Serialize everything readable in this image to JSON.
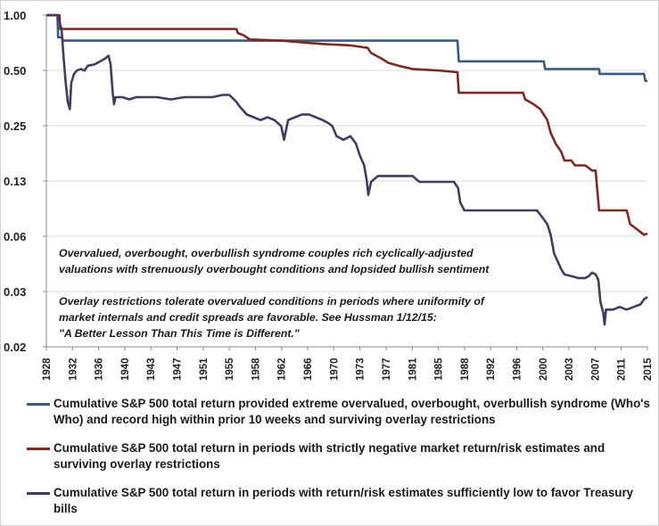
{
  "chart_data": {
    "type": "line",
    "yscale": "log",
    "ylim": [
      0.02,
      1.0
    ],
    "xlim": [
      1928,
      2015
    ],
    "y_ticks": [
      "1.00",
      "0.50",
      "0.25",
      "0.13",
      "0.06",
      "0.03",
      "0.02"
    ],
    "y_tick_values": [
      1.0,
      0.5,
      0.25,
      0.13,
      0.06,
      0.03,
      0.02
    ],
    "x_ticks": [
      "1928",
      "1932",
      "1936",
      "1940",
      "1943",
      "1947",
      "1951",
      "1955",
      "1958",
      "1962",
      "1966",
      "1970",
      "1973",
      "1977",
      "1981",
      "1985",
      "1988",
      "1992",
      "1996",
      "2000",
      "2003",
      "2007",
      "2011",
      "2015"
    ],
    "grid": "horizontal",
    "annotations": [
      "Overvalued, overbought, overbullish syndrome couples rich cyclically-adjusted",
      "valuations with strenuously overbought conditions and lopsided bullish sentiment",
      "Overlay restrictions tolerate overvalued conditions in periods where uniformity of",
      "market internals and credit spreads are favorable. See Hussman 1/12/15:",
      "\"A Better Lesson Than This Time is Different.\""
    ],
    "legend_placement": "bottom",
    "series": [
      {
        "name": "Cumulative S&P 500 total return provided extreme overvalued, overbought, overbullish syndrome (Who's Who) and record high within prior 10 weeks and surviving overlay restrictions",
        "color": "#3b5a7e",
        "points": [
          [
            1928,
            1.0
          ],
          [
            1929.6,
            1.0
          ],
          [
            1929.7,
            0.77
          ],
          [
            1930.3,
            0.77
          ],
          [
            1930.4,
            0.74
          ],
          [
            1987.5,
            0.74
          ],
          [
            1987.7,
            0.58
          ],
          [
            2000.0,
            0.58
          ],
          [
            2000.2,
            0.53
          ],
          [
            2008.0,
            0.53
          ],
          [
            2008.1,
            0.5
          ],
          [
            2014.5,
            0.5
          ],
          [
            2014.7,
            0.46
          ],
          [
            2015,
            0.46
          ]
        ]
      },
      {
        "name": "Cumulative S&P 500 total return in periods with strictly negative market return/risk estimates and surviving overlay restrictions",
        "color": "#7a2a22",
        "points": [
          [
            1928,
            1.0
          ],
          [
            1929.9,
            1.0
          ],
          [
            1930.0,
            0.85
          ],
          [
            1955.5,
            0.85
          ],
          [
            1955.7,
            0.81
          ],
          [
            1956.5,
            0.79
          ],
          [
            1957.5,
            0.75
          ],
          [
            1958.0,
            0.75
          ],
          [
            1962.0,
            0.74
          ],
          [
            1966.0,
            0.72
          ],
          [
            1968.5,
            0.71
          ],
          [
            1972.0,
            0.7
          ],
          [
            1974.5,
            0.68
          ],
          [
            1975.0,
            0.64
          ],
          [
            1976.5,
            0.6
          ],
          [
            1977.5,
            0.57
          ],
          [
            1979.0,
            0.55
          ],
          [
            1981.0,
            0.53
          ],
          [
            1985.0,
            0.52
          ],
          [
            1987.5,
            0.51
          ],
          [
            1987.7,
            0.4
          ],
          [
            1997.0,
            0.4
          ],
          [
            1997.3,
            0.37
          ],
          [
            1998.5,
            0.35
          ],
          [
            1999.5,
            0.33
          ],
          [
            2000.5,
            0.29
          ],
          [
            2001.0,
            0.25
          ],
          [
            2001.7,
            0.22
          ],
          [
            2002.5,
            0.2
          ],
          [
            2003.0,
            0.18
          ],
          [
            2004.0,
            0.18
          ],
          [
            2004.5,
            0.17
          ],
          [
            2006.0,
            0.17
          ],
          [
            2007.0,
            0.16
          ],
          [
            2007.5,
            0.16
          ],
          [
            2008.0,
            0.1
          ],
          [
            2012.0,
            0.1
          ],
          [
            2012.5,
            0.085
          ],
          [
            2013.5,
            0.08
          ],
          [
            2014.5,
            0.075
          ],
          [
            2015,
            0.076
          ]
        ]
      },
      {
        "name": "Cumulative S&P 500 total return in periods with return/risk estimates sufficiently low to favor Treasury bills",
        "color": "#463a5e",
        "points": [
          [
            1928,
            1.0
          ],
          [
            1929.6,
            1.0
          ],
          [
            1929.8,
            0.95
          ],
          [
            1930.2,
            0.85
          ],
          [
            1930.5,
            0.6
          ],
          [
            1930.8,
            0.45
          ],
          [
            1931.1,
            0.36
          ],
          [
            1931.4,
            0.33
          ],
          [
            1931.6,
            0.45
          ],
          [
            1932.0,
            0.5
          ],
          [
            1932.4,
            0.52
          ],
          [
            1933.0,
            0.53
          ],
          [
            1933.5,
            0.52
          ],
          [
            1934.0,
            0.55
          ],
          [
            1935.0,
            0.56
          ],
          [
            1935.8,
            0.58
          ],
          [
            1936.5,
            0.6
          ],
          [
            1937.0,
            0.62
          ],
          [
            1937.3,
            0.56
          ],
          [
            1937.6,
            0.4
          ],
          [
            1937.8,
            0.35
          ],
          [
            1938.0,
            0.38
          ],
          [
            1939.0,
            0.38
          ],
          [
            1940.0,
            0.37
          ],
          [
            1941.0,
            0.38
          ],
          [
            1942.0,
            0.38
          ],
          [
            1944.0,
            0.38
          ],
          [
            1946.0,
            0.37
          ],
          [
            1948.0,
            0.38
          ],
          [
            1950.0,
            0.38
          ],
          [
            1952.0,
            0.38
          ],
          [
            1953.5,
            0.39
          ],
          [
            1954.5,
            0.39
          ],
          [
            1955.5,
            0.36
          ],
          [
            1956.0,
            0.34
          ],
          [
            1957.0,
            0.31
          ],
          [
            1958.0,
            0.3
          ],
          [
            1959.0,
            0.29
          ],
          [
            1960.0,
            0.3
          ],
          [
            1961.0,
            0.29
          ],
          [
            1962.0,
            0.27
          ],
          [
            1962.4,
            0.23
          ],
          [
            1963.0,
            0.29
          ],
          [
            1964.0,
            0.3
          ],
          [
            1965.0,
            0.31
          ],
          [
            1966.0,
            0.31
          ],
          [
            1967.0,
            0.3
          ],
          [
            1968.0,
            0.29
          ],
          [
            1968.8,
            0.28
          ],
          [
            1969.4,
            0.27
          ],
          [
            1970.0,
            0.24
          ],
          [
            1971.0,
            0.23
          ],
          [
            1972.0,
            0.24
          ],
          [
            1972.8,
            0.22
          ],
          [
            1973.4,
            0.19
          ],
          [
            1974.0,
            0.17
          ],
          [
            1974.4,
            0.14
          ],
          [
            1974.6,
            0.12
          ],
          [
            1975.0,
            0.14
          ],
          [
            1976.0,
            0.15
          ],
          [
            1977.0,
            0.15
          ],
          [
            1978.0,
            0.15
          ],
          [
            1979.0,
            0.15
          ],
          [
            1980.0,
            0.15
          ],
          [
            1981.0,
            0.15
          ],
          [
            1982.0,
            0.14
          ],
          [
            1983.0,
            0.14
          ],
          [
            1984.0,
            0.14
          ],
          [
            1985.0,
            0.14
          ],
          [
            1986.0,
            0.14
          ],
          [
            1987.0,
            0.14
          ],
          [
            1987.6,
            0.13
          ],
          [
            1987.9,
            0.11
          ],
          [
            1988.5,
            0.1
          ],
          [
            1990.0,
            0.1
          ],
          [
            1992.0,
            0.1
          ],
          [
            1994.0,
            0.1
          ],
          [
            1995.5,
            0.1
          ],
          [
            1996.0,
            0.1
          ],
          [
            1997.0,
            0.1
          ],
          [
            1998.0,
            0.1
          ],
          [
            1999.0,
            0.1
          ],
          [
            1999.5,
            0.095
          ],
          [
            2000.0,
            0.09
          ],
          [
            2000.5,
            0.085
          ],
          [
            2001.0,
            0.075
          ],
          [
            2001.5,
            0.06
          ],
          [
            2002.0,
            0.055
          ],
          [
            2002.5,
            0.05
          ],
          [
            2003.0,
            0.047
          ],
          [
            2004.0,
            0.046
          ],
          [
            2005.0,
            0.045
          ],
          [
            2006.0,
            0.045
          ],
          [
            2006.5,
            0.046
          ],
          [
            2007.0,
            0.048
          ],
          [
            2007.5,
            0.047
          ],
          [
            2007.9,
            0.044
          ],
          [
            2008.2,
            0.034
          ],
          [
            2008.6,
            0.03
          ],
          [
            2008.8,
            0.026
          ],
          [
            2009.0,
            0.031
          ],
          [
            2010.0,
            0.031
          ],
          [
            2011.0,
            0.032
          ],
          [
            2012.0,
            0.031
          ],
          [
            2013.0,
            0.032
          ],
          [
            2014.0,
            0.033
          ],
          [
            2014.5,
            0.035
          ],
          [
            2015,
            0.036
          ]
        ]
      }
    ]
  }
}
